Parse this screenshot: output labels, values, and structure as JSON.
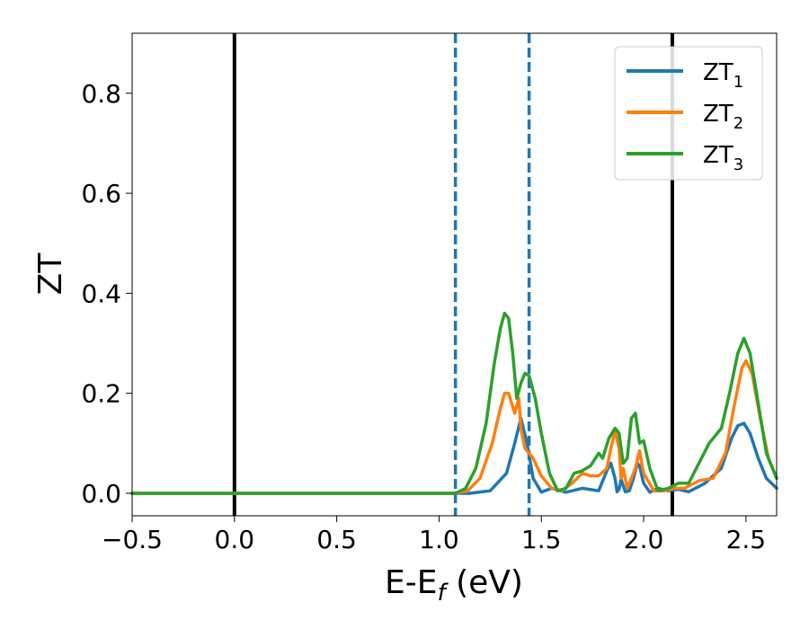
{
  "chart_data": {
    "type": "line",
    "xlabel_main": "E-E",
    "xlabel_sub": "f",
    "xlabel_unit": " (eV)",
    "ylabel": "ZT",
    "xlim": [
      -0.5,
      2.65
    ],
    "ylim": [
      -0.045,
      0.92
    ],
    "x_ticks": [
      -0.5,
      0.0,
      0.5,
      1.0,
      1.5,
      2.0,
      2.5
    ],
    "x_tick_labels": [
      "−0.5",
      "0.0",
      "0.5",
      "1.0",
      "1.5",
      "2.0",
      "2.5"
    ],
    "y_ticks": [
      0.0,
      0.2,
      0.4,
      0.6,
      0.8
    ],
    "y_tick_labels": [
      "0.0",
      "0.2",
      "0.4",
      "0.6",
      "0.8"
    ],
    "grid": false,
    "legend_position": "top-right",
    "vertical_lines": [
      {
        "x": 0.0,
        "style": "solid",
        "color": "#000000"
      },
      {
        "x": 2.14,
        "style": "solid",
        "color": "#000000"
      },
      {
        "x": 1.08,
        "style": "dashed",
        "color": "#1f77b4"
      },
      {
        "x": 1.44,
        "style": "dashed",
        "color": "#1f77b4"
      }
    ],
    "series": [
      {
        "name": "ZT",
        "name_sub": "1",
        "color": "#1f77b4",
        "x": [
          -0.5,
          1.0,
          1.15,
          1.25,
          1.33,
          1.37,
          1.4,
          1.43,
          1.46,
          1.5,
          1.55,
          1.62,
          1.7,
          1.78,
          1.82,
          1.84,
          1.86,
          1.87,
          1.88,
          1.89,
          1.91,
          1.93,
          1.95,
          1.97,
          1.98,
          2.0,
          2.03,
          2.07,
          2.12,
          2.17,
          2.22,
          2.3,
          2.38,
          2.43,
          2.46,
          2.49,
          2.52,
          2.56,
          2.6,
          2.65
        ],
        "y": [
          0.0,
          0.0,
          0.0,
          0.005,
          0.04,
          0.1,
          0.15,
          0.1,
          0.03,
          0.002,
          0.01,
          0.002,
          0.01,
          0.005,
          0.045,
          0.06,
          0.03,
          0.003,
          0.008,
          0.028,
          0.003,
          0.005,
          0.03,
          0.06,
          0.055,
          0.02,
          0.002,
          0.01,
          0.005,
          0.008,
          0.003,
          0.02,
          0.05,
          0.11,
          0.135,
          0.14,
          0.12,
          0.07,
          0.03,
          0.01
        ]
      },
      {
        "name": "ZT",
        "name_sub": "2",
        "color": "#ff7f0e",
        "x": [
          -0.5,
          1.08,
          1.14,
          1.2,
          1.26,
          1.3,
          1.32,
          1.34,
          1.37,
          1.39,
          1.4,
          1.42,
          1.46,
          1.5,
          1.55,
          1.6,
          1.65,
          1.7,
          1.74,
          1.78,
          1.82,
          1.84,
          1.86,
          1.88,
          1.89,
          1.9,
          1.92,
          1.94,
          1.96,
          1.98,
          2.0,
          2.05,
          2.1,
          2.15,
          2.2,
          2.27,
          2.34,
          2.4,
          2.44,
          2.48,
          2.5,
          2.53,
          2.57,
          2.61,
          2.65
        ],
        "y": [
          0.0,
          0.0,
          0.005,
          0.03,
          0.1,
          0.17,
          0.2,
          0.2,
          0.16,
          0.19,
          0.13,
          0.09,
          0.07,
          0.035,
          0.01,
          0.005,
          0.02,
          0.04,
          0.035,
          0.035,
          0.05,
          0.09,
          0.125,
          0.09,
          0.03,
          0.05,
          0.01,
          0.03,
          0.05,
          0.085,
          0.04,
          0.005,
          0.005,
          0.01,
          0.01,
          0.025,
          0.03,
          0.08,
          0.17,
          0.25,
          0.265,
          0.24,
          0.15,
          0.07,
          0.03
        ]
      },
      {
        "name": "ZT",
        "name_sub": "3",
        "color": "#2ca02c",
        "x": [
          -0.5,
          1.08,
          1.13,
          1.18,
          1.23,
          1.27,
          1.3,
          1.32,
          1.34,
          1.36,
          1.38,
          1.4,
          1.42,
          1.44,
          1.47,
          1.5,
          1.54,
          1.58,
          1.62,
          1.66,
          1.7,
          1.74,
          1.78,
          1.8,
          1.83,
          1.86,
          1.88,
          1.9,
          1.92,
          1.94,
          1.96,
          1.98,
          2.0,
          2.03,
          2.07,
          2.12,
          2.17,
          2.22,
          2.27,
          2.32,
          2.38,
          2.42,
          2.46,
          2.49,
          2.52,
          2.56,
          2.6,
          2.65
        ],
        "y": [
          0.0,
          0.0,
          0.01,
          0.05,
          0.14,
          0.26,
          0.33,
          0.36,
          0.35,
          0.28,
          0.19,
          0.22,
          0.24,
          0.235,
          0.19,
          0.12,
          0.04,
          0.005,
          0.01,
          0.04,
          0.045,
          0.055,
          0.08,
          0.07,
          0.11,
          0.13,
          0.12,
          0.06,
          0.07,
          0.15,
          0.16,
          0.1,
          0.105,
          0.05,
          0.005,
          0.01,
          0.02,
          0.02,
          0.06,
          0.1,
          0.13,
          0.2,
          0.28,
          0.31,
          0.28,
          0.18,
          0.08,
          0.03
        ]
      }
    ]
  }
}
